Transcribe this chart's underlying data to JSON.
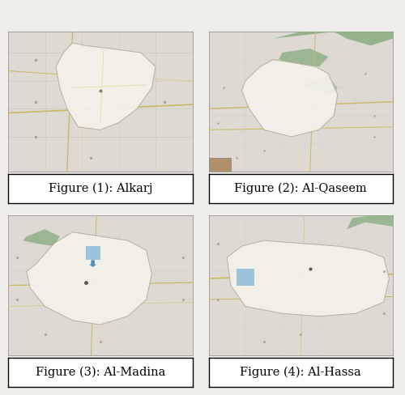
{
  "captions": [
    "Figure (1): Alkarj",
    "Figure (2): Al-Qaseem",
    "Figure (3): Al-Madina",
    "Figure (4): Al-Hassa"
  ],
  "bg_color": "#f0eeeb",
  "caption_box_color": "#ffffff",
  "caption_box_edge": "#000000",
  "caption_fontsize": 10.5,
  "fig_width": 5.0,
  "fig_height": 4.88,
  "dpi": 100,
  "map_bg": "#c8c4bc",
  "land_bg": "#dedad3",
  "region_white": "#f5f2ec",
  "road_tan": "#c8b864",
  "green1": "#8aad82",
  "green2": "#9aba92"
}
